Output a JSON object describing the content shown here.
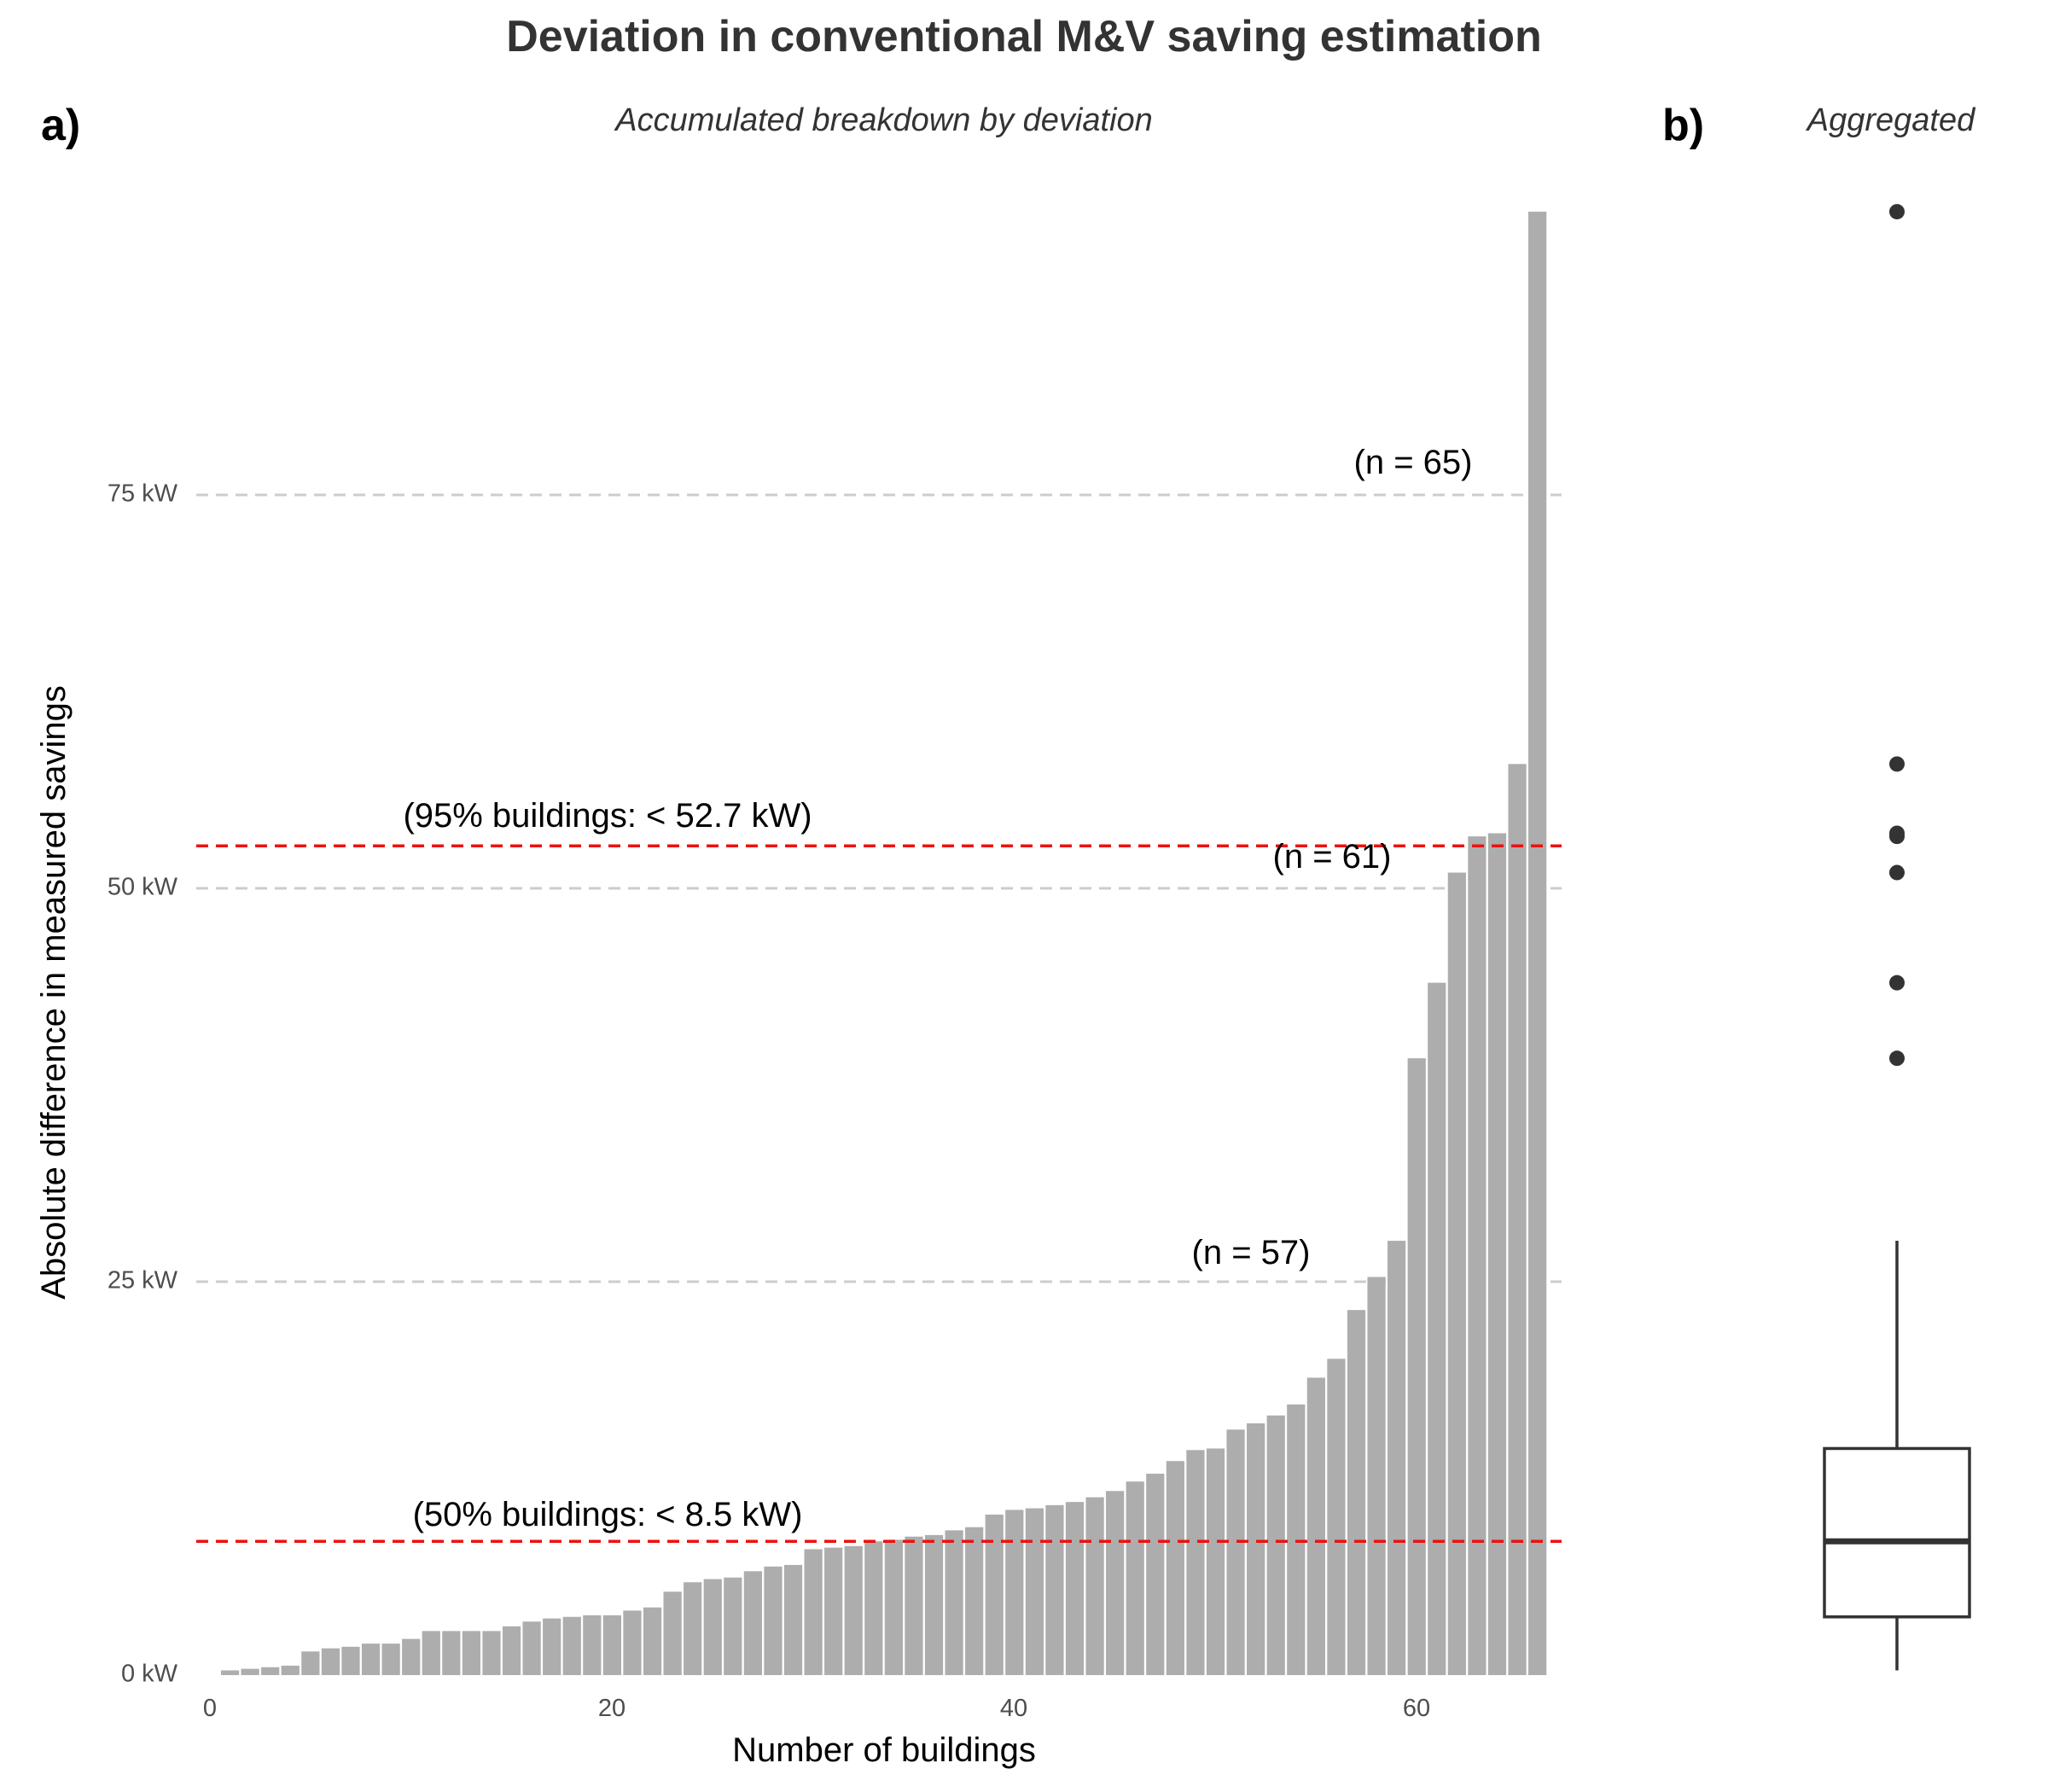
{
  "title": "Deviation in conventional M&V saving estimation",
  "panels": {
    "a": {
      "label": "a)",
      "subtitle": "Accumulated breakdown by deviation",
      "xlabel": "Number of buildings",
      "ylabel": "Absolute difference in measured savings",
      "x_ticks": [
        "0",
        "20",
        "40",
        "60"
      ],
      "y_ticks": [
        "0 kW",
        "25 kW",
        "50 kW",
        "75 kW"
      ],
      "reference_lines": [
        {
          "value": 8.5,
          "label": "(50% buildings: < 8.5 kW)"
        },
        {
          "value": 52.7,
          "label": "(95% buildings: < 52.7 kW)"
        }
      ],
      "n_annotations": [
        {
          "label": "(n = 57)",
          "level": 25
        },
        {
          "label": "(n = 61)",
          "level": 50
        },
        {
          "label": "(n = 65)",
          "level": 75
        }
      ]
    },
    "b": {
      "label": "b)",
      "subtitle": "Aggregated"
    }
  },
  "colors": {
    "bars": "#adadad",
    "reference_line": "#ee1111",
    "gridline": "#cccccc",
    "box": "#333333"
  },
  "chart_data": [
    {
      "type": "bar",
      "panel": "a",
      "x": [
        1,
        2,
        3,
        4,
        5,
        6,
        7,
        8,
        9,
        10,
        11,
        12,
        13,
        14,
        15,
        16,
        17,
        18,
        19,
        20,
        21,
        22,
        23,
        24,
        25,
        26,
        27,
        28,
        29,
        30,
        31,
        32,
        33,
        34,
        35,
        36,
        37,
        38,
        39,
        40,
        41,
        42,
        43,
        44,
        45,
        46,
        47,
        48,
        49,
        50,
        51,
        52,
        53,
        54,
        55,
        56,
        57,
        58,
        59,
        60,
        61,
        62,
        63,
        64,
        65,
        66
      ],
      "values": [
        0.3,
        0.4,
        0.5,
        0.6,
        1.5,
        1.7,
        1.8,
        2.0,
        2.0,
        2.3,
        2.8,
        2.8,
        2.8,
        2.8,
        3.1,
        3.4,
        3.6,
        3.7,
        3.8,
        3.8,
        4.1,
        4.3,
        5.3,
        5.9,
        6.1,
        6.2,
        6.6,
        6.9,
        7.0,
        8.0,
        8.1,
        8.2,
        8.5,
        8.6,
        8.8,
        8.9,
        9.2,
        9.4,
        10.2,
        10.5,
        10.6,
        10.8,
        11.0,
        11.3,
        11.7,
        12.3,
        12.8,
        13.6,
        14.3,
        14.4,
        15.6,
        16.0,
        16.5,
        17.2,
        18.9,
        20.1,
        23.2,
        25.3,
        27.6,
        39.2,
        44.0,
        51.0,
        53.3,
        53.5,
        57.9,
        93.0
      ],
      "xlabel": "Number of buildings",
      "ylabel": "Absolute difference in measured savings",
      "xlim": [
        0,
        66.5
      ],
      "ylim": [
        0,
        93
      ],
      "grid": "horizontal dashed at y ticks"
    },
    {
      "type": "box",
      "panel": "b",
      "whisker_low": 0.3,
      "q1": 3.7,
      "median": 8.5,
      "q3": 14.4,
      "whisker_high": 27.6,
      "outliers": [
        39.2,
        44.0,
        51.0,
        53.3,
        53.5,
        57.9,
        93.0
      ]
    }
  ]
}
